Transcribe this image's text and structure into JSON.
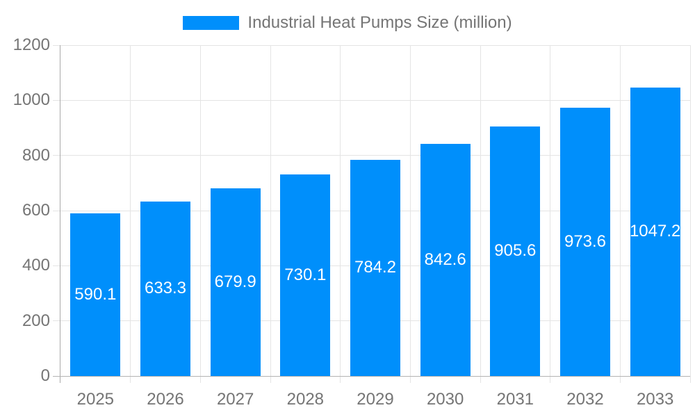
{
  "legend": {
    "series_label": "Industrial Heat Pumps Size (million)"
  },
  "chart_data": {
    "type": "bar",
    "title": "Industrial Heat Pumps Size (million)",
    "categories": [
      "2025",
      "2026",
      "2027",
      "2028",
      "2029",
      "2030",
      "2031",
      "2032",
      "2033"
    ],
    "values": [
      590.1,
      633.3,
      679.9,
      730.1,
      784.2,
      842.6,
      905.6,
      973.6,
      1047.2
    ],
    "value_labels": [
      "590.1",
      "633.3",
      "679.9",
      "730.1",
      "784.2",
      "842.6",
      "905.6",
      "973.6",
      "1047.2"
    ],
    "xlabel": "",
    "ylabel": "",
    "ylim": [
      0,
      1200
    ],
    "yticks": [
      0,
      200,
      400,
      600,
      800,
      1000,
      1200
    ],
    "grid": true,
    "legend_position": "top",
    "colors": {
      "bar": "#008FFB",
      "grid": "#e4e4e4",
      "y_axis_line": "#a9a9a9",
      "x_axis_line": "#b3b3b3",
      "tick_text": "#757575",
      "data_label": "#ffffff",
      "background": "#ffffff"
    }
  }
}
